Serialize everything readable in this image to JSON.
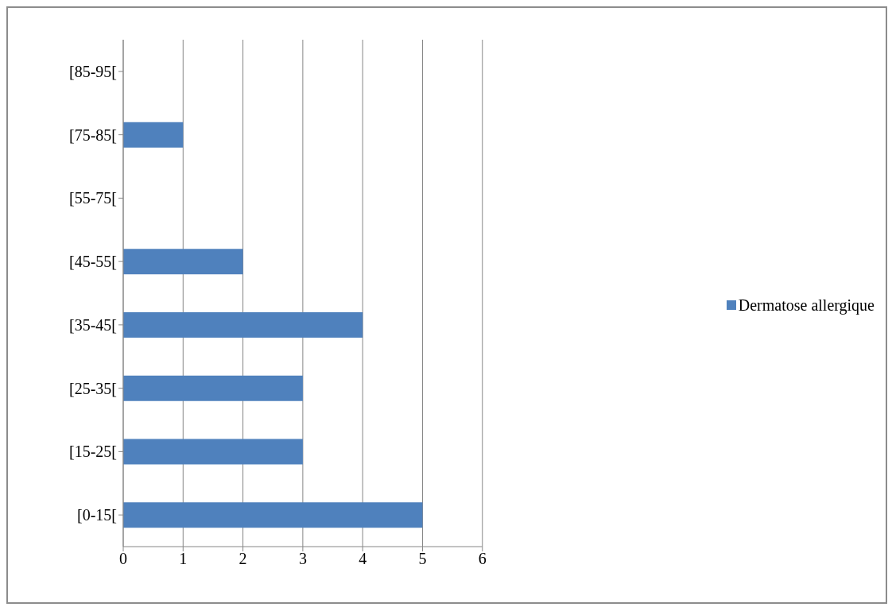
{
  "chart_data": {
    "type": "bar",
    "orientation": "horizontal",
    "categories": [
      "[85-95[",
      "[75-85[",
      "[55-75[",
      "[45-55[",
      "[35-45[",
      "[25-35[",
      "[15-25[",
      "[0-15["
    ],
    "series": [
      {
        "name": "Dermatose allergique",
        "color": "#4f81bd",
        "values": [
          0,
          1,
          0,
          2,
          4,
          3,
          3,
          5
        ]
      }
    ],
    "xlim": [
      0,
      6
    ],
    "xticks": [
      0,
      1,
      2,
      3,
      4,
      5,
      6
    ],
    "grid": "x",
    "legend": "right"
  }
}
